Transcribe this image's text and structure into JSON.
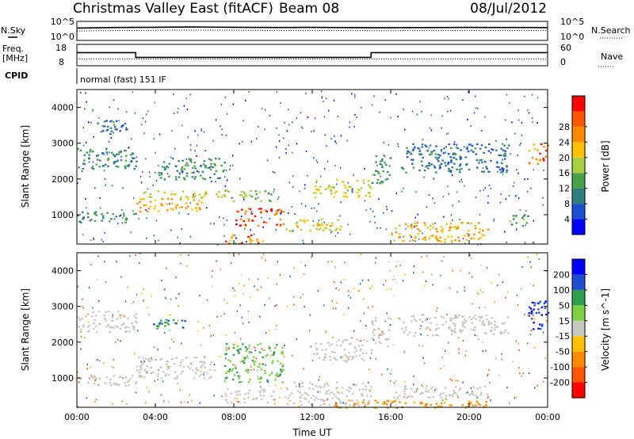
{
  "header": {
    "title": "Christmas Valley East (fitACF)",
    "beam": "Beam 08",
    "date": "08/Jul/2012"
  },
  "top_panels": {
    "nsky_label": "N.Sky",
    "nsearch_label": "N.Search",
    "nsky_ticks": [
      "10^5",
      "10^0"
    ],
    "nsearch_ticks": [
      "10^5",
      "10^0"
    ],
    "freq_label_1": "Freq.",
    "freq_label_2": "[MHz]",
    "freq_ticks": [
      "18",
      "8"
    ],
    "nave_label": "Nave",
    "nave_ticks": [
      "60",
      "0"
    ],
    "cpid_label": "CPID",
    "cpid_value": "normal (fast) 151 IF"
  },
  "chart_data": [
    {
      "type": "line",
      "title": "",
      "ylabel": "N.Sky",
      "y2label": "N.Search",
      "yscale": "log",
      "ylim": [
        1,
        100000
      ],
      "x_hours": [
        0,
        1,
        2,
        3,
        4,
        5,
        6,
        7,
        8,
        9,
        10,
        11,
        12,
        13,
        14,
        15,
        16,
        17,
        18,
        19,
        20,
        21,
        22,
        23,
        24
      ],
      "series": [
        {
          "values": [
            2000,
            2500,
            3000,
            3200,
            3500,
            4000,
            4200,
            3800,
            3500,
            3300,
            3000,
            3100,
            3200,
            3000,
            2800,
            2700,
            2600,
            2800,
            2900,
            3000,
            3200,
            3000,
            3100,
            3000,
            2900
          ]
        },
        {
          "values": [
            300,
            350,
            400,
            420,
            450,
            500,
            550,
            520,
            480,
            450,
            400,
            410,
            420,
            400,
            380,
            370,
            360,
            380,
            390,
            400,
            420,
            400,
            410,
            400,
            390
          ]
        }
      ]
    },
    {
      "type": "line",
      "ylabel": "Freq. [MHz]",
      "y2label": "Nave",
      "ylim": [
        8,
        18
      ],
      "y2lim": [
        0,
        60
      ],
      "x_hours": [
        0,
        3,
        3,
        15,
        15,
        24
      ],
      "series": [
        {
          "values": [
            14.5,
            14.5,
            12,
            12,
            14.5,
            14.5
          ]
        },
        {
          "values": [
            19,
            19,
            19,
            19,
            19,
            19
          ]
        }
      ]
    },
    {
      "type": "heatmap",
      "ylabel": "Slant Range [km]",
      "xlim": [
        0,
        24
      ],
      "ylim": [
        180,
        4500
      ],
      "yticks": [
        1000,
        2000,
        3000,
        4000
      ],
      "colorbar_label": "Power [dB]",
      "colorbar_ticks": [
        4,
        8,
        12,
        16,
        20,
        24,
        28
      ],
      "colorbar_colors": [
        "#0000ff",
        "#1e4fd0",
        "#2f7f7f",
        "#48a048",
        "#a6d13c",
        "#ffc000",
        "#ff8a00",
        "#ff5500",
        "#ff0000"
      ],
      "echo_regions": [
        {
          "t0": 0.0,
          "t1": 3.0,
          "r0": 2300,
          "r1": 2900,
          "val": 11
        },
        {
          "t0": 1.0,
          "t1": 2.8,
          "r0": 3250,
          "r1": 3650,
          "val": 9
        },
        {
          "t0": 0.0,
          "t1": 3.0,
          "r0": 800,
          "r1": 1100,
          "val": 12
        },
        {
          "t0": 3.0,
          "t1": 6.5,
          "r0": 1100,
          "r1": 1500,
          "val": 24
        },
        {
          "t0": 3.2,
          "t1": 7.5,
          "r0": 1500,
          "r1": 1700,
          "val": 19
        },
        {
          "t0": 4.0,
          "t1": 7.5,
          "r0": 2000,
          "r1": 2600,
          "val": 12
        },
        {
          "t0": 8.0,
          "t1": 10.5,
          "r0": 700,
          "r1": 1200,
          "val": 28
        },
        {
          "t0": 7.5,
          "t1": 9.5,
          "r0": 200,
          "r1": 500,
          "val": 25
        },
        {
          "t0": 7.5,
          "t1": 10.0,
          "r0": 1400,
          "r1": 1700,
          "val": 16
        },
        {
          "t0": 10.5,
          "t1": 13.5,
          "r0": 550,
          "r1": 900,
          "val": 21
        },
        {
          "t0": 12.0,
          "t1": 15.0,
          "r0": 1500,
          "r1": 2000,
          "val": 20
        },
        {
          "t0": 15.0,
          "t1": 16.0,
          "r0": 1900,
          "r1": 2700,
          "val": 13
        },
        {
          "t0": 16.0,
          "t1": 21.0,
          "r0": 250,
          "r1": 800,
          "val": 23
        },
        {
          "t0": 16.5,
          "t1": 22.0,
          "r0": 2200,
          "r1": 3000,
          "val": 9
        },
        {
          "t0": 22.0,
          "t1": 23.0,
          "r0": 700,
          "r1": 1100,
          "val": 13
        },
        {
          "t0": 23.0,
          "t1": 24.0,
          "r0": 2400,
          "r1": 3000,
          "val": 26
        }
      ]
    },
    {
      "type": "heatmap",
      "ylabel": "Slant Range [km]",
      "xlabel": "Time UT",
      "xlim": [
        0,
        24
      ],
      "ylim": [
        180,
        4500
      ],
      "yticks": [
        1000,
        2000,
        3000,
        4000
      ],
      "xtick_labels": [
        "00:00",
        "04:00",
        "08:00",
        "12:00",
        "16:00",
        "20:00",
        "00:00"
      ],
      "colorbar_label": "Velocity [m s^-1]",
      "colorbar_ticks": [
        -200,
        -100,
        -50,
        -15,
        15,
        50,
        100,
        200
      ],
      "colorbar_colors": [
        "#ff0000",
        "#ff5500",
        "#ff8a00",
        "#ffc000",
        "#c8c8c0",
        "#7fd045",
        "#2f9f4f",
        "#1e4fd0",
        "#0000ff"
      ],
      "echo_regions": [
        {
          "t0": 0.0,
          "t1": 3.0,
          "r0": 2300,
          "r1": 2900,
          "val": 0
        },
        {
          "t0": 0.0,
          "t1": 3.0,
          "r0": 800,
          "r1": 1100,
          "val": 0
        },
        {
          "t0": 3.0,
          "t1": 7.0,
          "r0": 1000,
          "r1": 1600,
          "val": 0
        },
        {
          "t0": 3.5,
          "t1": 5.5,
          "r0": 2400,
          "r1": 2700,
          "val": 90
        },
        {
          "t0": 7.5,
          "t1": 10.5,
          "r0": 900,
          "r1": 2000,
          "val": 40
        },
        {
          "t0": 7.5,
          "t1": 10.0,
          "r0": 300,
          "r1": 700,
          "val": 0
        },
        {
          "t0": 10.5,
          "t1": 15.0,
          "r0": 250,
          "r1": 900,
          "val": 0
        },
        {
          "t0": 12.0,
          "t1": 15.0,
          "r0": 1500,
          "r1": 2100,
          "val": 0
        },
        {
          "t0": 15.0,
          "t1": 16.0,
          "r0": 1900,
          "r1": 2700,
          "val": 0
        },
        {
          "t0": 16.0,
          "t1": 21.0,
          "r0": 450,
          "r1": 800,
          "val": 0
        },
        {
          "t0": 13.0,
          "t1": 21.0,
          "r0": 180,
          "r1": 400,
          "val": -70
        },
        {
          "t0": 16.5,
          "t1": 22.0,
          "r0": 2200,
          "r1": 2800,
          "val": 0
        },
        {
          "t0": 23.0,
          "t1": 24.0,
          "r0": 2300,
          "r1": 3200,
          "val": 200
        }
      ]
    }
  ]
}
